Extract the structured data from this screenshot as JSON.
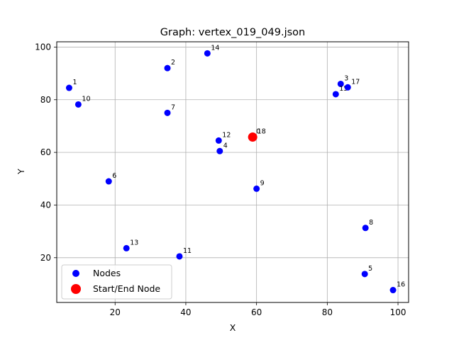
{
  "chart_data": {
    "type": "scatter",
    "title": "Graph: vertex_019_049.json",
    "xlabel": "X",
    "ylabel": "Y",
    "xlim": [
      3.5,
      103
    ],
    "ylim": [
      3,
      102
    ],
    "xticks": [
      20,
      40,
      60,
      80,
      100
    ],
    "yticks": [
      20,
      40,
      60,
      80,
      100
    ],
    "xtick_labels": [
      "20",
      "40",
      "60",
      "80",
      "100"
    ],
    "ytick_labels": [
      "20",
      "40",
      "60",
      "80",
      "100"
    ],
    "grid": true,
    "legend_position": "lower-left",
    "legend": [
      {
        "label": "Nodes",
        "color": "#0000ff"
      },
      {
        "label": "Start/End Node",
        "color": "#ff0000"
      }
    ],
    "series": [
      {
        "name": "Nodes",
        "color": "#0000ff",
        "points": [
          {
            "id": "1",
            "x": 7.0,
            "y": 84.5
          },
          {
            "id": "2",
            "x": 34.8,
            "y": 92.0
          },
          {
            "id": "3",
            "x": 83.8,
            "y": 86.0
          },
          {
            "id": "4",
            "x": 49.6,
            "y": 60.5
          },
          {
            "id": "5",
            "x": 90.6,
            "y": 13.8
          },
          {
            "id": "6",
            "x": 18.2,
            "y": 49.0
          },
          {
            "id": "7",
            "x": 34.8,
            "y": 75.0
          },
          {
            "id": "8",
            "x": 90.8,
            "y": 31.3
          },
          {
            "id": "9",
            "x": 60.0,
            "y": 46.2
          },
          {
            "id": "10",
            "x": 9.6,
            "y": 78.2
          },
          {
            "id": "11",
            "x": 38.2,
            "y": 20.5
          },
          {
            "id": "12",
            "x": 49.3,
            "y": 64.5
          },
          {
            "id": "13",
            "x": 23.2,
            "y": 23.6
          },
          {
            "id": "14",
            "x": 46.1,
            "y": 97.6
          },
          {
            "id": "15",
            "x": 82.4,
            "y": 82.1
          },
          {
            "id": "16",
            "x": 98.6,
            "y": 7.7
          },
          {
            "id": "17",
            "x": 85.8,
            "y": 84.7
          },
          {
            "id": "18",
            "x": 59.2,
            "y": 65.8
          }
        ]
      },
      {
        "name": "Start/End Node",
        "color": "#ff0000",
        "points": [
          {
            "id": "0",
            "x": 58.9,
            "y": 65.8
          }
        ]
      }
    ]
  }
}
